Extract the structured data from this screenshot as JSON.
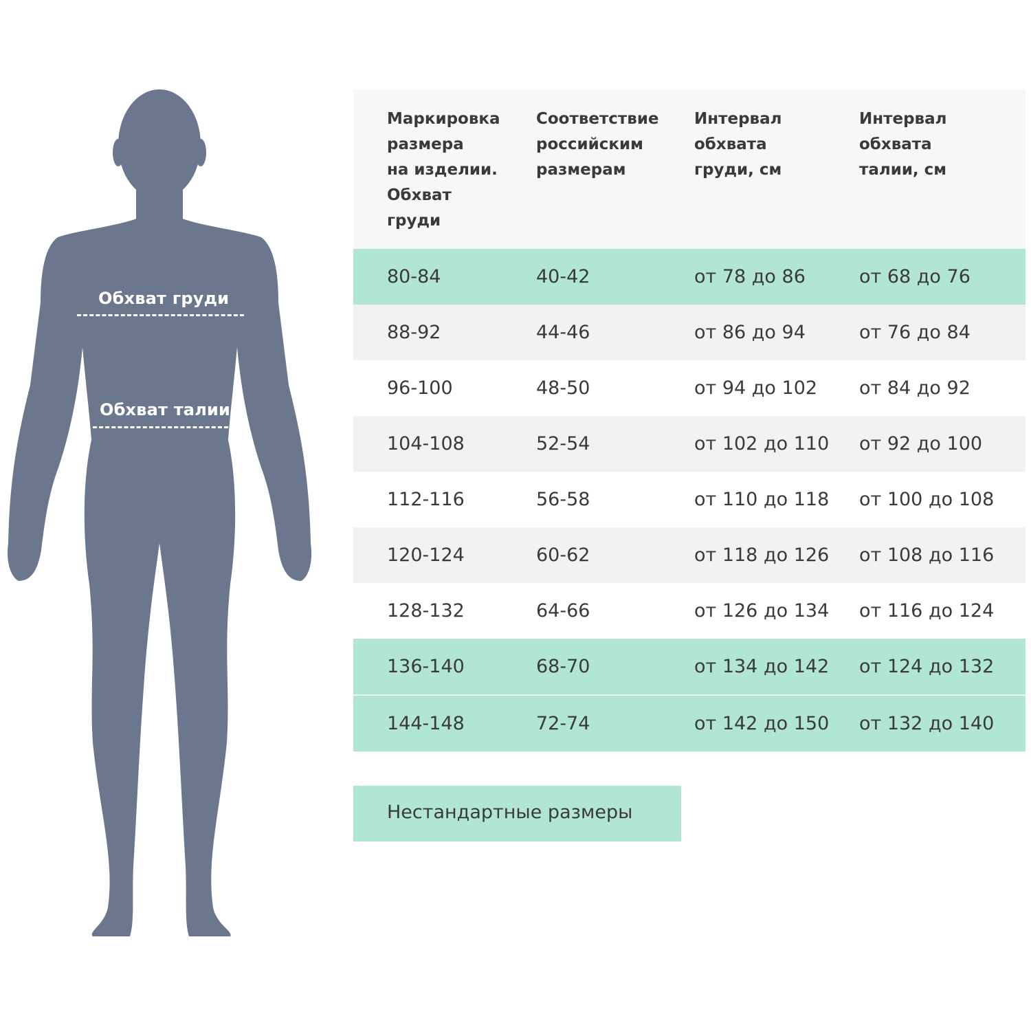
{
  "colors": {
    "silhouette": "#6b778d",
    "nonstandard_highlight": "#b1e6d6",
    "row_alt": "#f2f2f2",
    "header_bg": "#f7f7f7",
    "text": "#3a3a3a"
  },
  "figure": {
    "chest_label": "Обхват груди",
    "waist_label": "Обхват талии"
  },
  "table": {
    "headers": [
      "Маркировка\nразмера\nна изделии.\nОбхват\nгруди",
      "Соответствие\nроссийским\nразмерам",
      "Интервал\nобхвата\nгруди, см",
      "Интервал\nобхвата\nталии, см"
    ],
    "rows": [
      {
        "cells": [
          "80-84",
          "40-42",
          "от 78 до 86",
          "от 68 до 76"
        ],
        "nonstandard": true
      },
      {
        "cells": [
          "88-92",
          "44-46",
          "от 86 до 94",
          "от 76 до 84"
        ],
        "nonstandard": false
      },
      {
        "cells": [
          "96-100",
          "48-50",
          "от 94 до 102",
          "от 84 до 92"
        ],
        "nonstandard": false
      },
      {
        "cells": [
          "104-108",
          "52-54",
          "от 102 до 110",
          "от 92 до 100"
        ],
        "nonstandard": false
      },
      {
        "cells": [
          "112-116",
          "56-58",
          "от 110 до 118",
          "от 100 до 108"
        ],
        "nonstandard": false
      },
      {
        "cells": [
          "120-124",
          "60-62",
          "от 118 до 126",
          "от 108 до 116"
        ],
        "nonstandard": false
      },
      {
        "cells": [
          "128-132",
          "64-66",
          "от 126 до 134",
          "от 116 до 124"
        ],
        "nonstandard": false
      },
      {
        "cells": [
          "136-140",
          "68-70",
          "от 134 до 142",
          "от 124 до 132"
        ],
        "nonstandard": true
      },
      {
        "cells": [
          "144-148",
          "72-74",
          "от 142 до 150",
          "от 132 до 140"
        ],
        "nonstandard": true
      }
    ]
  },
  "legend": {
    "label": "Нестандартные размеры"
  }
}
